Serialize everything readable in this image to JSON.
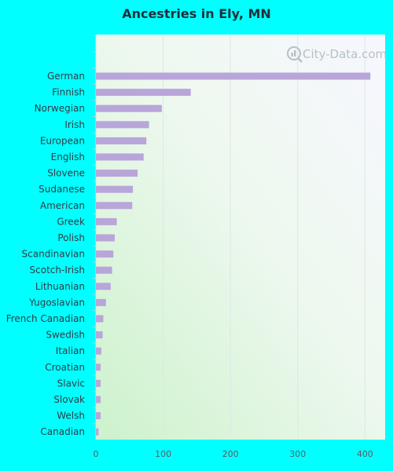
{
  "page": {
    "title": "Ancestries in Ely, MN",
    "background": "#00FFFF"
  },
  "watermark": {
    "text": "City-Data.com",
    "icon": "city-data-logo-icon"
  },
  "chart_data": {
    "type": "bar",
    "orientation": "horizontal",
    "title": "Ancestries in Ely, MN",
    "xlabel": "",
    "ylabel": "",
    "categories": [
      "German",
      "Finnish",
      "Norwegian",
      "Irish",
      "European",
      "English",
      "Slovene",
      "Sudanese",
      "American",
      "Greek",
      "Polish",
      "Scandinavian",
      "Scotch-Irish",
      "Lithuanian",
      "Yugoslavian",
      "French Canadian",
      "Swedish",
      "Italian",
      "Croatian",
      "Slavic",
      "Slovak",
      "Welsh",
      "Canadian"
    ],
    "values": [
      408,
      141,
      98,
      79,
      75,
      71,
      62,
      55,
      54,
      31,
      28,
      26,
      24,
      22,
      15,
      11,
      10,
      8,
      7,
      7,
      7,
      7,
      4
    ],
    "xlim": [
      0,
      430
    ],
    "xticks": [
      0,
      100,
      200,
      300,
      400
    ],
    "grid": true,
    "bar_color": "#b8a5d9"
  }
}
